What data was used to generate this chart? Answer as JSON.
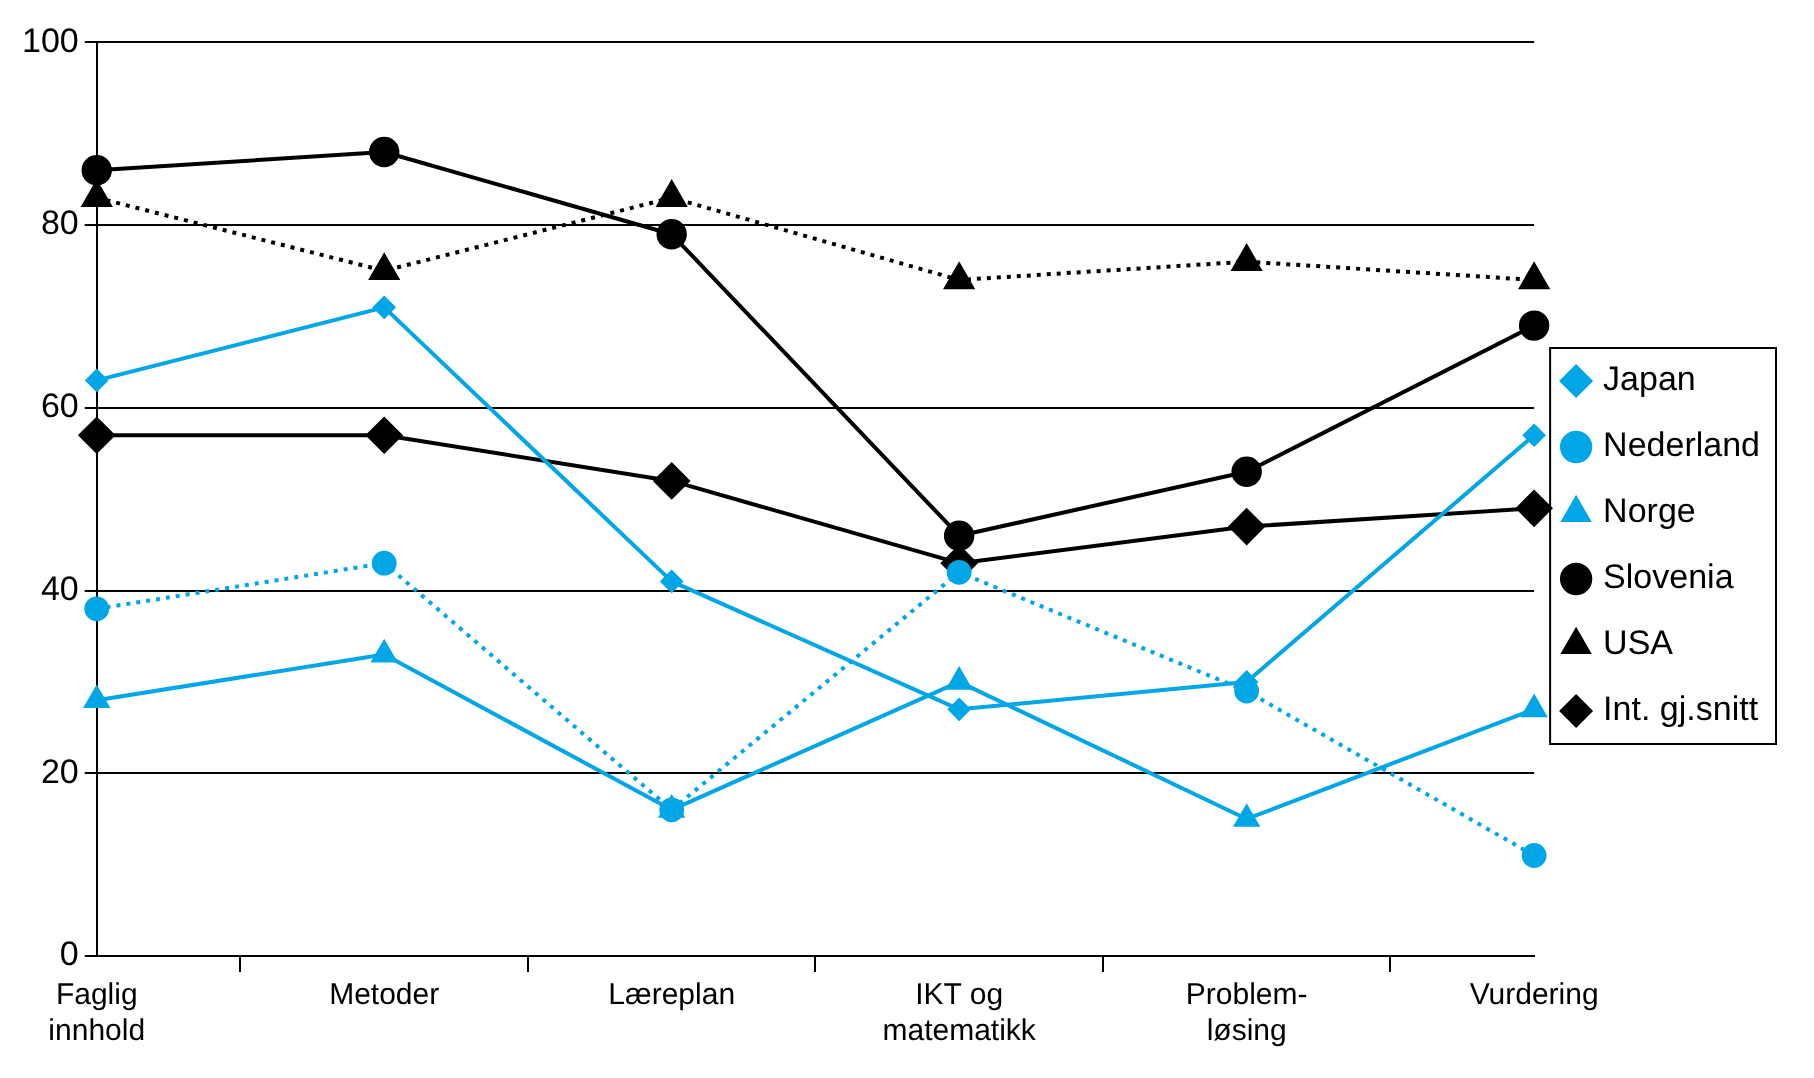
{
  "chart_data": {
    "type": "line",
    "categories": [
      "Faglig innhold",
      "Metoder",
      "Læreplan",
      "IKT og matematikk",
      "Problem-løsing",
      "Vurdering"
    ],
    "series": [
      {
        "name": "Japan",
        "color": "#00a6e6",
        "marker": "diamond",
        "line_style": "solid",
        "values": [
          63,
          71,
          41,
          27,
          30,
          57
        ]
      },
      {
        "name": "Nederland",
        "color": "#00a6e6",
        "marker": "circle",
        "line_style": "dotted",
        "values": [
          38,
          43,
          16,
          42,
          29,
          11
        ]
      },
      {
        "name": "Norge",
        "color": "#00a6e6",
        "marker": "triangle",
        "line_style": "solid",
        "values": [
          28,
          33,
          16,
          30,
          15,
          27
        ]
      },
      {
        "name": "Slovenia",
        "color": "#000000",
        "marker": "circle",
        "line_style": "solid",
        "values": [
          86,
          88,
          79,
          46,
          53,
          69
        ]
      },
      {
        "name": "USA",
        "color": "#000000",
        "marker": "triangle",
        "line_style": "dotted",
        "values": [
          83,
          75,
          83,
          74,
          76,
          74
        ]
      },
      {
        "name": "Int. gj.snitt",
        "color": "#000000",
        "marker": "diamond",
        "line_style": "solid",
        "values": [
          57,
          57,
          52,
          43,
          47,
          49
        ]
      }
    ],
    "ylim": [
      0,
      100
    ],
    "yticks": [
      0,
      20,
      40,
      60,
      80,
      100
    ],
    "grid": "y",
    "legend": "right"
  }
}
